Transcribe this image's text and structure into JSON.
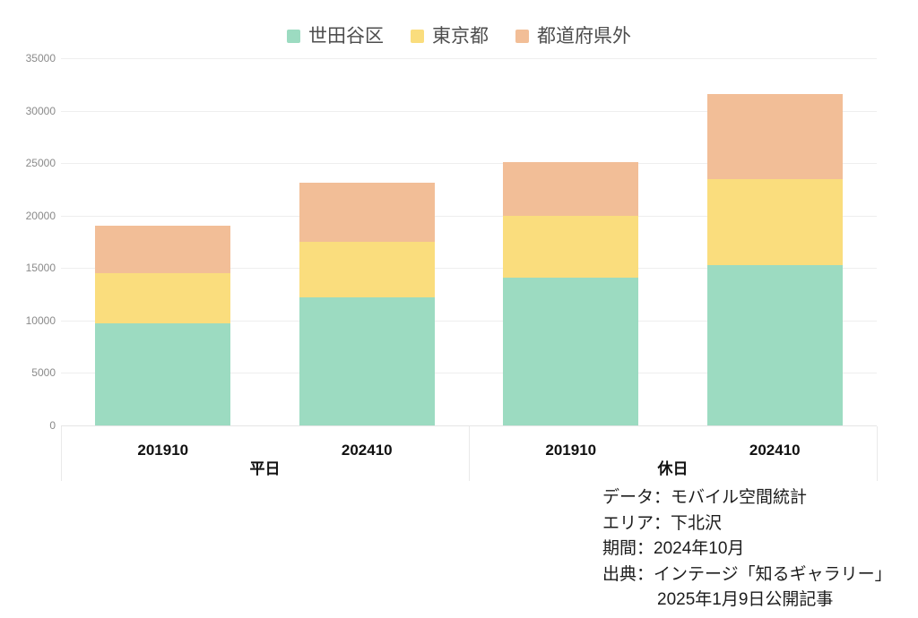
{
  "legend": {
    "items": [
      {
        "label": "世田谷区",
        "color": "#9CDBC1"
      },
      {
        "label": "東京都",
        "color": "#FADD7D"
      },
      {
        "label": "都道府県外",
        "color": "#F2BE97"
      }
    ]
  },
  "chart_data": {
    "type": "bar",
    "stacked": true,
    "title": "",
    "xlabel": "",
    "ylabel": "",
    "ylim": [
      0,
      35000
    ],
    "yticks": [
      0,
      5000,
      10000,
      15000,
      20000,
      25000,
      30000,
      35000
    ],
    "grid": true,
    "legend_position": "top",
    "series": [
      "世田谷区",
      "東京都",
      "都道府県外"
    ],
    "colors": [
      "#9CDBC1",
      "#FADD7D",
      "#F2BE97"
    ],
    "groups": [
      {
        "label": "平日",
        "bars": [
          {
            "x": "201910",
            "values": [
              9700,
              4800,
              4500
            ],
            "total": 19000
          },
          {
            "x": "202410",
            "values": [
              12200,
              5300,
              5600
            ],
            "total": 23100
          }
        ]
      },
      {
        "label": "休日",
        "bars": [
          {
            "x": "201910",
            "values": [
              14100,
              5900,
              5100
            ],
            "total": 25100
          },
          {
            "x": "202410",
            "values": [
              15300,
              8200,
              8100
            ],
            "total": 31600
          }
        ]
      }
    ]
  },
  "footer": {
    "lines": [
      "データ：モバイル空間統計",
      "エリア：下北沢",
      "期間：2024年10月",
      "出典：インテージ「知るギャラリー」",
      "2025年1月9日公開記事"
    ]
  }
}
